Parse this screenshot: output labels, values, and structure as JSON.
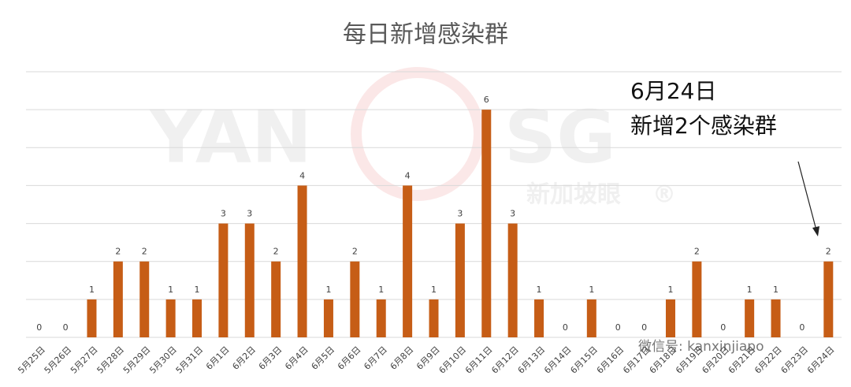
{
  "chart_data": {
    "type": "bar",
    "title": "每日新增感染群",
    "categories": [
      "5月25日",
      "5月26日",
      "5月27日",
      "5月28日",
      "5月29日",
      "5月30日",
      "5月31日",
      "6月1日",
      "6月2日",
      "6月3日",
      "6月4日",
      "6月5日",
      "6月6日",
      "6月7日",
      "6月8日",
      "6月9日",
      "6月10日",
      "6月11日",
      "6月12日",
      "6月13日",
      "6月14日",
      "6月15日",
      "6月16日",
      "6月17日",
      "6月18日",
      "6月19日",
      "6月20日",
      "6月21日",
      "6月22日",
      "6月23日",
      "6月24日"
    ],
    "values": [
      0,
      0,
      1,
      2,
      2,
      1,
      1,
      3,
      3,
      2,
      4,
      1,
      2,
      1,
      4,
      1,
      3,
      6,
      3,
      1,
      0,
      1,
      0,
      0,
      1,
      2,
      0,
      1,
      1,
      0,
      2
    ],
    "color": "#c65d16",
    "ylim": [
      0,
      7
    ],
    "yticks": [
      0,
      1,
      2,
      3,
      4,
      5,
      6,
      7
    ],
    "grid": true,
    "annotations": [
      "6月24日",
      "新增2个感染群"
    ],
    "watermarks": [
      "YAN",
      "SG",
      "新加坡眼",
      "®",
      "微信号: kanxinjiapo"
    ]
  }
}
